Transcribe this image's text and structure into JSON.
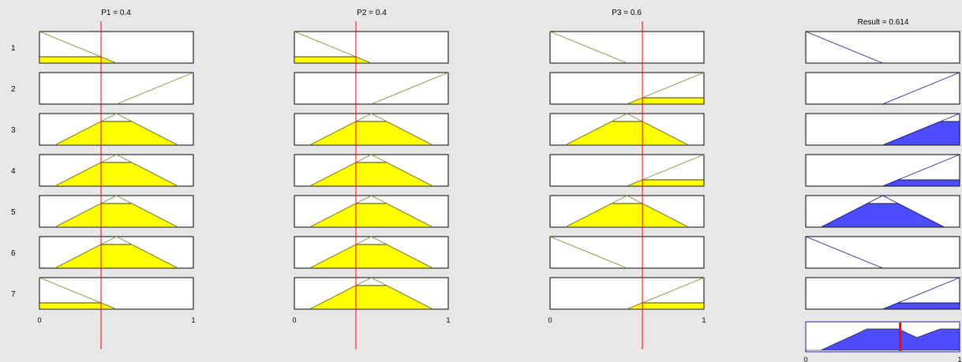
{
  "inputs": [
    {
      "label": "P1 = 0.4",
      "value": 0.4
    },
    {
      "label": "P2 = 0.4",
      "value": 0.4
    },
    {
      "label": "P3 = 0.6",
      "value": 0.6
    }
  ],
  "output": {
    "label": "Result = 0.614",
    "value": 0.614
  },
  "axis_ticks": [
    "0",
    "1"
  ],
  "rule_numbers": [
    "1",
    "2",
    "3",
    "4",
    "5",
    "6",
    "7"
  ],
  "membership_functions": {
    "low": [
      [
        0,
        1
      ],
      [
        0.5,
        0
      ]
    ],
    "high": [
      [
        0.5,
        0
      ],
      [
        1,
        1
      ]
    ],
    "mid": [
      [
        0.1,
        0
      ],
      [
        0.5,
        1
      ],
      [
        0.9,
        0
      ]
    ]
  },
  "rules": [
    {
      "rule": 1,
      "p1": "low",
      "p2": "low",
      "p3": "low",
      "result": "low"
    },
    {
      "rule": 2,
      "p1": "high",
      "p2": "high",
      "p3": "high",
      "result": "high"
    },
    {
      "rule": 3,
      "p1": "mid",
      "p2": "mid",
      "p3": "mid",
      "result": "high"
    },
    {
      "rule": 4,
      "p1": "mid",
      "p2": "mid",
      "p3": "high",
      "result": "high"
    },
    {
      "rule": 5,
      "p1": "mid",
      "p2": "mid",
      "p3": "mid",
      "result": "mid"
    },
    {
      "rule": 6,
      "p1": "mid",
      "p2": "mid",
      "p3": "low",
      "result": "low"
    },
    {
      "rule": 7,
      "p1": "low",
      "p2": "mid",
      "p3": "high",
      "result": "high"
    }
  ],
  "colors": {
    "input_fill": "#ffff00",
    "output_fill": "#4d4dff",
    "input_mf_line": "#8a8a3a",
    "output_mf_line": "#2020a0",
    "cursor_line": "#ff0000",
    "aggregate_marker": "#ff0000",
    "plot_background": "#ffffff",
    "window_background": "#e7e7e7"
  }
}
